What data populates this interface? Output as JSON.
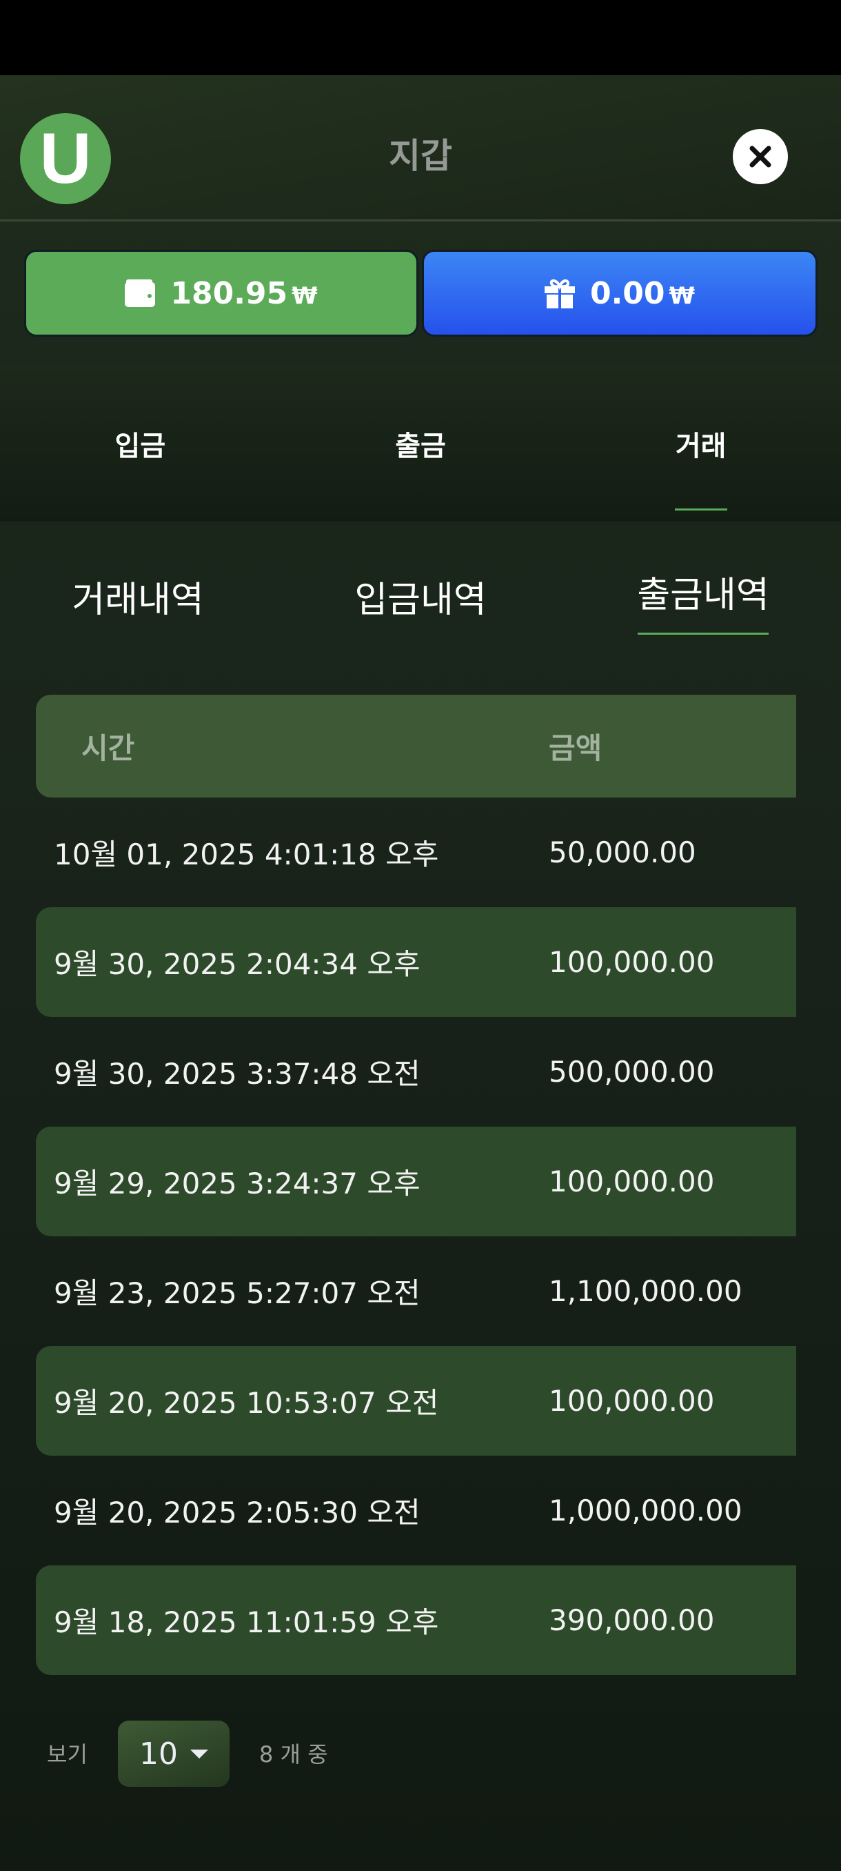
{
  "header": {
    "title": "지갑",
    "logo_letter": "U"
  },
  "balances": {
    "main": {
      "amount": "180.95",
      "currency": "₩",
      "icon": "wallet-icon"
    },
    "bonus": {
      "amount": "0.00",
      "currency": "₩",
      "icon": "gift-icon"
    }
  },
  "tabs": [
    {
      "label": "입금"
    },
    {
      "label": "출금"
    },
    {
      "label": "거래",
      "active": true
    }
  ],
  "subtabs": [
    {
      "label": "거래내역"
    },
    {
      "label": "입금내역"
    },
    {
      "label": "출금내역",
      "active": true
    }
  ],
  "table": {
    "headers": [
      "시간",
      "금액"
    ],
    "rows": [
      [
        "10월 01, 2025 4:01:18 오후",
        "50,000.00"
      ],
      [
        "9월 30, 2025 2:04:34 오후",
        "100,000.00"
      ],
      [
        "9월 30, 2025 3:37:48 오전",
        "500,000.00"
      ],
      [
        "9월 29, 2025 3:24:37 오후",
        "100,000.00"
      ],
      [
        "9월 23, 2025 5:27:07 오전",
        "1,100,000.00"
      ],
      [
        "9월 20, 2025 10:53:07 오전",
        "100,000.00"
      ],
      [
        "9월 20, 2025 2:05:30 오전",
        "1,000,000.00"
      ],
      [
        "9월 18, 2025 11:01:59 오후",
        "390,000.00"
      ]
    ]
  },
  "footer": {
    "show_label": "보기",
    "page_size": "10",
    "count_text": "8 개 중"
  },
  "colors": {
    "accent": "#5cab58",
    "bonus": "#2f63ee",
    "header_row": "#3e5935",
    "stripe": "#2d4a2a"
  }
}
